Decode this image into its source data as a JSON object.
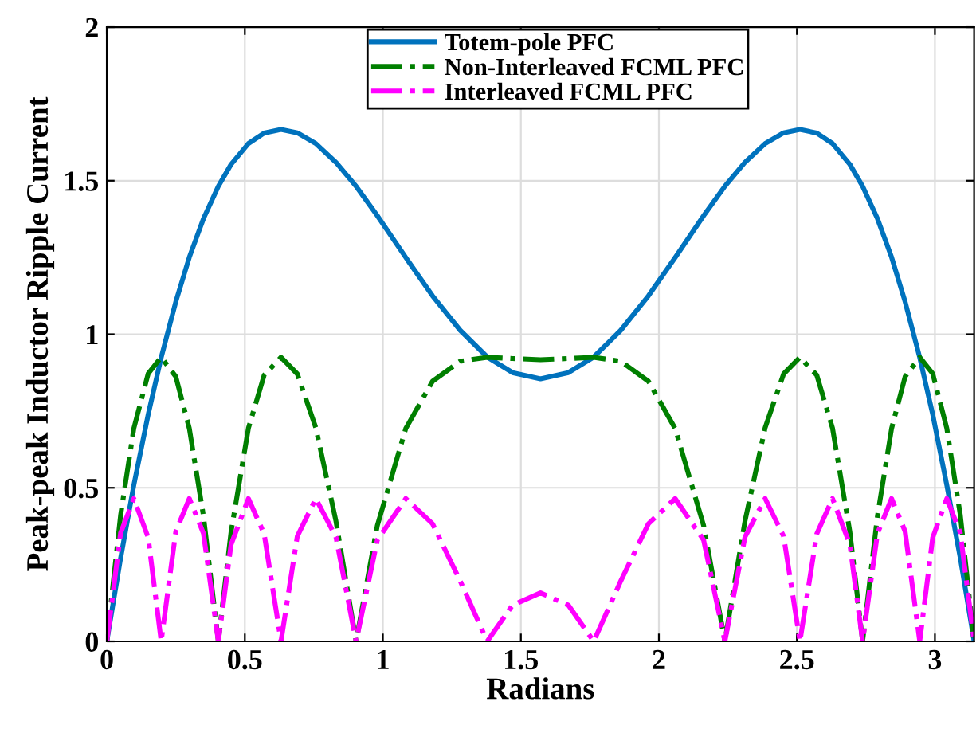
{
  "chart_data": {
    "type": "line",
    "xlabel": "Radians",
    "ylabel": "Peak-peak Inductor Ripple Current",
    "x": [
      0,
      0.05,
      0.098,
      0.15,
      0.197,
      0.25,
      0.299,
      0.35,
      0.404,
      0.45,
      0.513,
      0.57,
      0.631,
      0.69,
      0.757,
      0.83,
      0.903,
      0.98,
      1.083,
      1.18,
      1.28,
      1.378,
      1.47,
      1.571,
      1.672,
      1.764,
      1.862,
      1.962,
      2.059,
      2.162,
      2.239,
      2.312,
      2.385,
      2.452,
      2.511,
      2.572,
      2.629,
      2.692,
      2.738,
      2.792,
      2.843,
      2.892,
      2.945,
      2.992,
      3.043,
      3.092,
      3.142
    ],
    "series": [
      {
        "name": "Totem-pole PFC",
        "color": "#0072bd",
        "line_style": "solid",
        "values": [
          0,
          0.271,
          0.509,
          0.739,
          0.924,
          1.106,
          1.251,
          1.376,
          1.482,
          1.553,
          1.621,
          1.655,
          1.667,
          1.656,
          1.621,
          1.56,
          1.482,
          1.386,
          1.25,
          1.125,
          1.013,
          0.926,
          0.875,
          0.855,
          0.875,
          0.926,
          1.013,
          1.125,
          1.25,
          1.386,
          1.482,
          1.56,
          1.621,
          1.656,
          1.667,
          1.655,
          1.621,
          1.553,
          1.482,
          1.376,
          1.251,
          1.106,
          0.924,
          0.739,
          0.509,
          0.271,
          0
        ]
      },
      {
        "name": "Non-Interleaved FCML PFC",
        "color": "#007f00",
        "line_style": "dashdot",
        "values": [
          0,
          0.411,
          0.694,
          0.872,
          0.925,
          0.862,
          0.693,
          0.409,
          0,
          0.356,
          0.694,
          0.867,
          0.925,
          0.871,
          0.696,
          0.392,
          0,
          0.377,
          0.693,
          0.847,
          0.912,
          0.925,
          0.921,
          0.917,
          0.921,
          0.925,
          0.912,
          0.847,
          0.693,
          0.377,
          0,
          0.392,
          0.696,
          0.871,
          0.925,
          0.867,
          0.694,
          0.356,
          0,
          0.409,
          0.693,
          0.862,
          0.925,
          0.872,
          0.694,
          0.411,
          0
        ]
      },
      {
        "name": "Interleaved FCML PFC",
        "color": "#ff00ff",
        "line_style": "dashdot",
        "values": [
          0,
          0.353,
          0.465,
          0.338,
          0,
          0.358,
          0.465,
          0.352,
          0,
          0.315,
          0.465,
          0.35,
          0,
          0.342,
          0.465,
          0.34,
          0,
          0.33,
          0.465,
          0.383,
          0.197,
          0,
          0.118,
          0.158,
          0.118,
          0,
          0.197,
          0.383,
          0.465,
          0.33,
          0,
          0.34,
          0.465,
          0.342,
          0,
          0.35,
          0.465,
          0.315,
          0,
          0.352,
          0.465,
          0.358,
          0,
          0.338,
          0.465,
          0.353,
          0
        ]
      }
    ],
    "xlim": [
      0,
      3.142
    ],
    "xticks": [
      0,
      0.5,
      1,
      1.5,
      2,
      2.5,
      3
    ],
    "ylim": [
      0,
      2
    ],
    "yticks": [
      0,
      0.5,
      1,
      1.5,
      2
    ],
    "grid": true,
    "legend": "top",
    "marker": "none"
  }
}
